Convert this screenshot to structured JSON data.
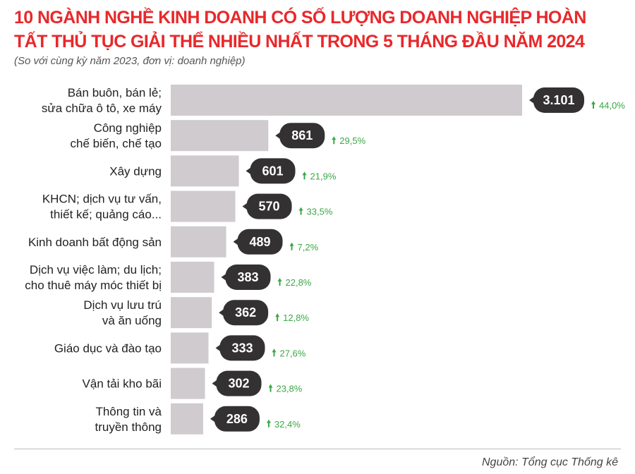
{
  "chart_data": {
    "type": "bar",
    "orientation": "horizontal",
    "title": "10 NGÀNH NGHỀ KINH DOANH CÓ SỐ LƯỢNG DOANH NGHIỆP HOÀN TẤT THỦ TỤC GIẢI THỂ NHIỀU NHẤT TRONG 5 THÁNG ĐẦU NĂM 2024",
    "subtitle": "(So với cùng kỳ năm 2023, đơn vị: doanh nghiệp)",
    "categories": [
      [
        "Bán buôn, bán lẻ;",
        "sửa chữa ô tô, xe máy"
      ],
      [
        "Công nghiệp",
        "chế biến, chế tạo"
      ],
      [
        "Xây dựng"
      ],
      [
        "KHCN; dịch vụ tư vấn,",
        "thiết kế; quảng cáo..."
      ],
      [
        "Kinh doanh bất động sản"
      ],
      [
        "Dịch vụ việc làm; du lịch;",
        "cho thuê máy móc thiết bị"
      ],
      [
        "Dịch vụ lưu trú",
        "và ăn uống"
      ],
      [
        "Giáo dục và đào tạo"
      ],
      [
        "Vận tải kho bãi"
      ],
      [
        "Thông tin và",
        "truyền thông"
      ]
    ],
    "values": [
      3101,
      861,
      601,
      570,
      489,
      383,
      362,
      333,
      302,
      286
    ],
    "value_labels": [
      "3.101",
      "861",
      "601",
      "570",
      "489",
      "383",
      "362",
      "333",
      "302",
      "286"
    ],
    "change_labels": [
      "44,0%",
      "29,5%",
      "21,9%",
      "33,5%",
      "7,2%",
      "22,8%",
      "12,8%",
      "27,6%",
      "23,8%",
      "32,4%"
    ],
    "change_direction": "up",
    "grid": false,
    "colors": {
      "title": "#e8282b",
      "bar": "#cfcbcf",
      "bubble": "#333132",
      "change": "#3aa845"
    }
  },
  "source": "Nguồn: Tổng cục Thống kê"
}
